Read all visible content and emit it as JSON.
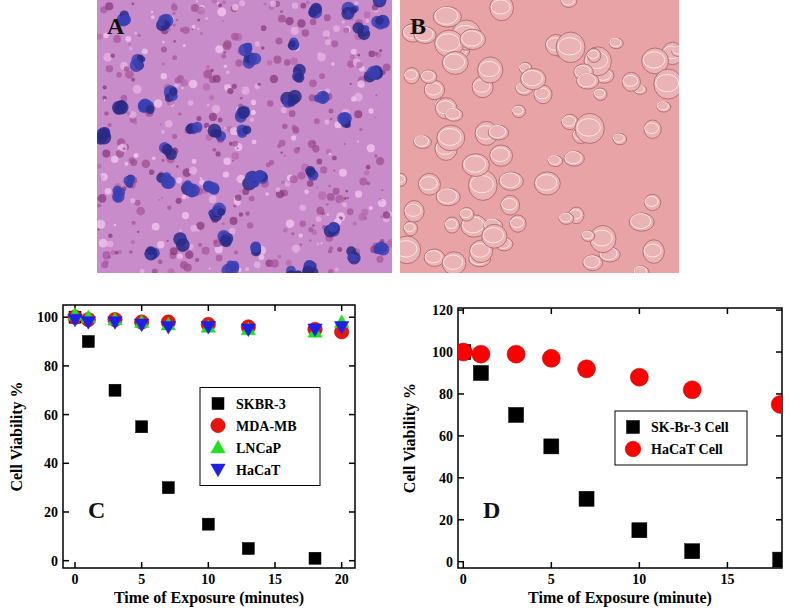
{
  "images": [
    {
      "label": "A"
    },
    {
      "label": "B"
    }
  ],
  "chart_data": [
    {
      "type": "scatter",
      "annotations": [
        "C"
      ],
      "x_label": "Time of Exposure (minutes)",
      "y_label": "Cell Viability %",
      "xlim": [
        -0.9,
        21
      ],
      "xticks": [
        0,
        5,
        10,
        15,
        20
      ],
      "ylim": [
        -3,
        105
      ],
      "yticks": [
        0,
        20,
        40,
        60,
        80,
        100
      ],
      "legend": "right",
      "series": [
        {
          "name": "SKBR-3",
          "color": "#000000",
          "marker": "square",
          "x": [
            0,
            1,
            3,
            5,
            7,
            10,
            13,
            18
          ],
          "values": [
            100,
            90,
            70,
            55,
            30,
            15,
            5,
            1
          ]
        },
        {
          "name": "MDA-MB",
          "color": "#e8140e",
          "marker": "circle",
          "x": [
            0,
            1,
            3,
            5,
            7,
            10,
            13,
            18,
            20
          ],
          "values": [
            100,
            99,
            99,
            98,
            98,
            97,
            96,
            95,
            94
          ]
        },
        {
          "name": "LNCaP",
          "color": "#22e022",
          "marker": "triangle-up",
          "x": [
            0,
            1,
            3,
            5,
            7,
            10,
            13,
            18,
            20
          ],
          "values": [
            101,
            100,
            99,
            98,
            97,
            96,
            95,
            94,
            98
          ]
        },
        {
          "name": "HaCaT",
          "color": "#1f1fe6",
          "marker": "triangle-down",
          "x": [
            0,
            1,
            3,
            5,
            7,
            10,
            13,
            18,
            20
          ],
          "values": [
            99,
            98,
            98,
            97,
            96,
            96,
            95,
            95,
            96
          ]
        }
      ]
    },
    {
      "type": "scatter",
      "annotations": [
        "D"
      ],
      "x_label": "Time of Exposure (minute)",
      "y_label": "Cell Viability %",
      "xlim": [
        -0.3,
        18.1
      ],
      "xticks": [
        0,
        5,
        10,
        15
      ],
      "ylim": [
        -3,
        121
      ],
      "yticks": [
        0,
        20,
        40,
        60,
        80,
        100,
        120
      ],
      "legend": "right",
      "series": [
        {
          "name": "SK-Br-3 Cell",
          "color": "#000000",
          "marker": "square",
          "x": [
            0,
            1,
            3,
            5,
            7,
            10,
            13,
            18
          ],
          "values": [
            100,
            90,
            70,
            55,
            30,
            15,
            5,
            1
          ]
        },
        {
          "name": "HaCaT Cell",
          "color": "#ff0000",
          "marker": "circle",
          "x": [
            0,
            1,
            3,
            5,
            7,
            10,
            13,
            18
          ],
          "values": [
            100,
            99,
            99,
            97,
            92,
            88,
            82,
            75
          ]
        }
      ]
    }
  ]
}
